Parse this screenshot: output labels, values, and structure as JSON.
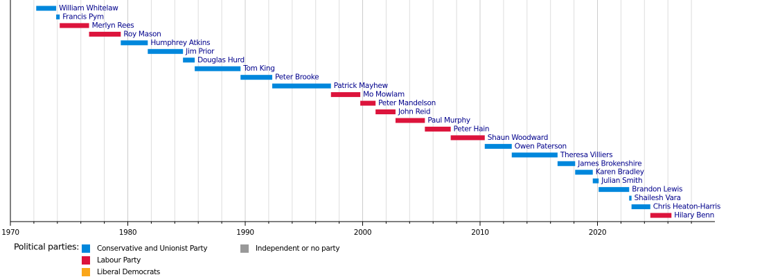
{
  "chart_data": {
    "type": "timeline",
    "categories": [
      "William Whitelaw",
      "Francis Pym",
      "Merlyn Rees",
      "Roy Mason",
      "Humphrey Atkins",
      "Jim Prior",
      "Douglas Hurd",
      "Tom King",
      "Peter Brooke",
      "Patrick Mayhew",
      "Mo Mowlam",
      "Peter Mandelson",
      "John Reid",
      "Paul Murphy",
      "Peter Hain",
      "Shaun Woodward",
      "Owen Paterson",
      "Theresa Villiers",
      "James Brokenshire",
      "Karen Bradley",
      "Julian Smith",
      "Brandon Lewis",
      "Shailesh Vara",
      "Chris Heaton-Harris",
      "Hilary Benn"
    ],
    "series": [
      {
        "name": "Conservative and Unionist Party",
        "color": "#0087dc",
        "values": [
          [
            1972.2,
            1973.9
          ],
          [
            1973.9,
            1974.2
          ],
          null,
          null,
          [
            1979.4,
            1981.7
          ],
          [
            1981.7,
            1984.7
          ],
          [
            1984.7,
            1985.7
          ],
          [
            1985.7,
            1989.6
          ],
          [
            1989.6,
            1992.3
          ],
          [
            1992.3,
            1997.3
          ],
          null,
          null,
          null,
          null,
          null,
          null,
          [
            2010.4,
            2012.7
          ],
          [
            2012.7,
            2016.6
          ],
          [
            2016.6,
            2018.1
          ],
          [
            2018.1,
            2019.6
          ],
          [
            2019.6,
            2020.1
          ],
          [
            2020.1,
            2022.7
          ],
          [
            2022.7,
            2022.9
          ],
          [
            2022.9,
            2024.5
          ],
          null
        ]
      },
      {
        "name": "Labour Party",
        "color": "#dc143c",
        "values": [
          null,
          null,
          [
            1974.2,
            1976.7
          ],
          [
            1976.7,
            1979.4
          ],
          null,
          null,
          null,
          null,
          null,
          null,
          [
            1997.3,
            1999.8
          ],
          [
            1999.8,
            2001.1
          ],
          [
            2001.1,
            2002.8
          ],
          [
            2002.8,
            2005.3
          ],
          [
            2005.3,
            2007.5
          ],
          [
            2007.5,
            2010.4
          ],
          null,
          null,
          null,
          null,
          null,
          null,
          null,
          null,
          [
            2024.5,
            2026.3
          ]
        ]
      },
      {
        "name": "Liberal Democrats",
        "color": "#faa61a",
        "values": [
          null,
          null,
          null,
          null,
          null,
          null,
          null,
          null,
          null,
          null,
          null,
          null,
          null,
          null,
          null,
          null,
          null,
          null,
          null,
          null,
          null,
          null,
          null,
          null,
          null
        ]
      },
      {
        "name": "Independent or no party",
        "color": "#999999",
        "values": [
          null,
          null,
          null,
          null,
          null,
          null,
          null,
          null,
          null,
          null,
          null,
          null,
          null,
          null,
          null,
          null,
          null,
          null,
          null,
          null,
          null,
          null,
          null,
          null,
          null
        ]
      }
    ],
    "legend_title": "Political parties:",
    "xlim": [
      1970,
      2030
    ],
    "xticks": [
      1970,
      1980,
      1990,
      2000,
      2010,
      2020
    ],
    "minor_xticks": [
      1972,
      1974,
      1976,
      1978,
      1982,
      1984,
      1986,
      1988,
      1992,
      1994,
      1996,
      1998,
      2002,
      2004,
      2006,
      2008,
      2012,
      2014,
      2016,
      2018,
      2022,
      2024,
      2026,
      2028
    ],
    "grid": true
  }
}
